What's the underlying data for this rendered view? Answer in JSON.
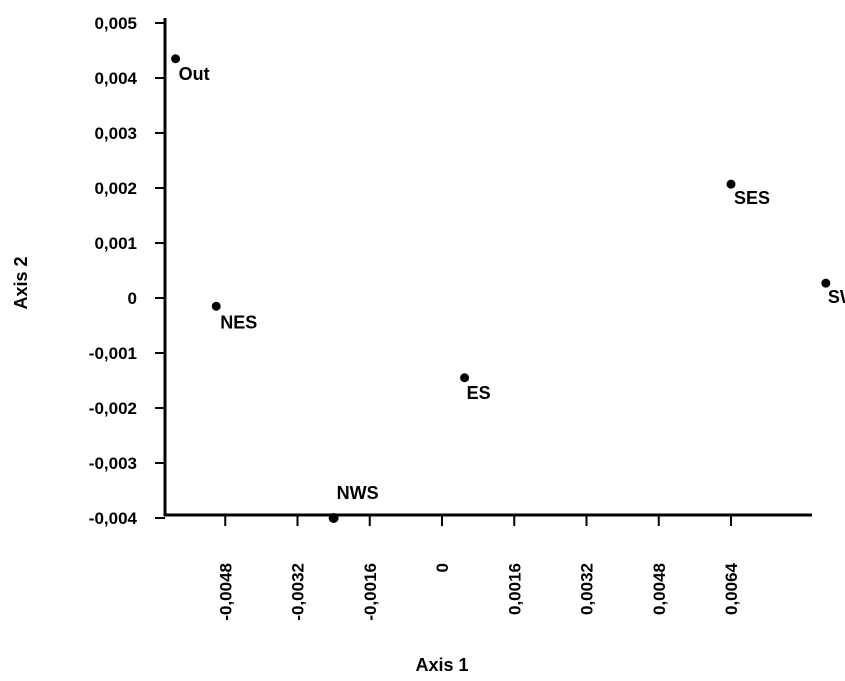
{
  "chart_data": {
    "type": "scatter",
    "xlabel": "Axis 1",
    "ylabel": "Axis 2",
    "xlim": [
      -0.0062,
      0.0091
    ],
    "ylim": [
      -0.004,
      0.005
    ],
    "x_ticks": [
      -0.0048,
      -0.0032,
      -0.0016,
      0,
      0.0016,
      0.0032,
      0.0048,
      0.0064
    ],
    "x_tick_labels": [
      "-0,0048",
      "-0,0032",
      "-0,0016",
      "0",
      "0,0016",
      "0,0032",
      "0,0048",
      "0,0064"
    ],
    "y_ticks": [
      0.005,
      0.004,
      0.003,
      0.002,
      0.001,
      0,
      -0.001,
      -0.002,
      -0.003,
      -0.004
    ],
    "y_tick_labels": [
      "0,005",
      "0,004",
      "0,003",
      "0,002",
      "0,001",
      "0",
      "-0,001",
      "-0,002",
      "-0,003",
      "-0,004"
    ],
    "grid": false,
    "points": [
      {
        "label": "Out",
        "x": -0.0059,
        "y": 0.00435
      },
      {
        "label": "NES",
        "x": -0.005,
        "y": -0.00015
      },
      {
        "label": "NWS",
        "x": -0.0024,
        "y": -0.004
      },
      {
        "label": "ES",
        "x": 0.0005,
        "y": -0.00145
      },
      {
        "label": "SES",
        "x": 0.0064,
        "y": 0.00207
      },
      {
        "label": "SWS",
        "x": 0.0085,
        "y": 0.00027
      }
    ],
    "point_color": "#000000"
  }
}
